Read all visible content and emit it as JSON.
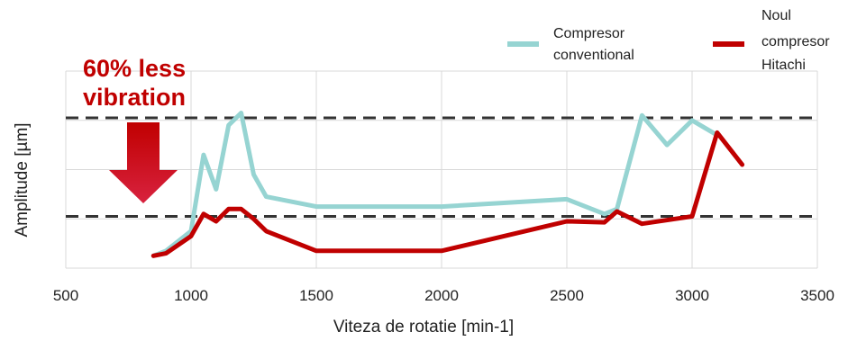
{
  "chart_data": {
    "type": "line",
    "xlabel": "Viteza de rotatie [min-1]",
    "ylabel": "Amplitude [µm]",
    "xlim": [
      500,
      3500
    ],
    "ylim": [
      0,
      4
    ],
    "x_ticks": [
      500,
      1000,
      1500,
      2000,
      2500,
      3000,
      3500
    ],
    "y_tick_labels_shown": false,
    "grid": true,
    "legend_position": "top-right",
    "reference_lines": [
      {
        "y": 3.05,
        "style": "dashed",
        "color": "#333333"
      },
      {
        "y": 1.05,
        "style": "dashed",
        "color": "#333333"
      }
    ],
    "annotation": {
      "lines": [
        "60% less",
        "vibration"
      ],
      "color": "#c00000",
      "arrow": "down-arrow"
    },
    "series": [
      {
        "name_lines": [
          "Compresor",
          "conventional"
        ],
        "color": "#96d4d2",
        "x": [
          850,
          900,
          1000,
          1050,
          1100,
          1150,
          1200,
          1250,
          1300,
          1500,
          2000,
          2500,
          2650,
          2700,
          2800,
          2900,
          3000,
          3100
        ],
        "y": [
          0.25,
          0.35,
          0.75,
          2.3,
          1.6,
          2.9,
          3.15,
          1.9,
          1.45,
          1.25,
          1.25,
          1.4,
          1.1,
          1.2,
          3.1,
          2.5,
          3.0,
          2.7
        ]
      },
      {
        "name_lines": [
          "Noul",
          "compresor",
          "Hitachi"
        ],
        "color": "#c00000",
        "x": [
          850,
          900,
          1000,
          1050,
          1100,
          1150,
          1200,
          1250,
          1300,
          1500,
          2000,
          2500,
          2650,
          2700,
          2800,
          3000,
          3100,
          3200
        ],
        "y": [
          0.25,
          0.3,
          0.65,
          1.1,
          0.95,
          1.2,
          1.2,
          1.0,
          0.75,
          0.35,
          0.35,
          0.95,
          0.93,
          1.15,
          0.9,
          1.05,
          2.75,
          2.1
        ]
      }
    ]
  }
}
